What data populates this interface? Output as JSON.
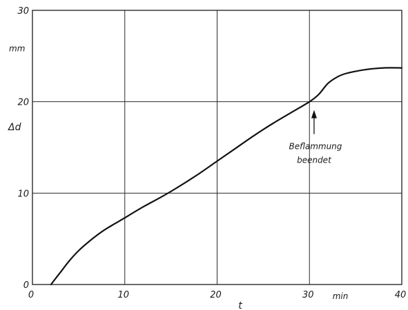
{
  "chart_data": {
    "type": "line",
    "title": "",
    "xlabel": "t",
    "xunit": "min",
    "ylabel": "Δd",
    "yunit": "mm",
    "xlim": [
      0,
      40
    ],
    "ylim": [
      0,
      30
    ],
    "x_ticks": [
      0,
      10,
      20,
      30,
      40
    ],
    "y_ticks": [
      0,
      10,
      20,
      30
    ],
    "grid": true,
    "series": [
      {
        "x": [
          2,
          3,
          4,
          5,
          6,
          7,
          8,
          9,
          10,
          12,
          14,
          16,
          18,
          20,
          22,
          24,
          26,
          28,
          30,
          31,
          32,
          33,
          34,
          36,
          38,
          40
        ],
        "y": [
          0,
          1.3,
          2.6,
          3.7,
          4.6,
          5.4,
          6.1,
          6.7,
          7.3,
          8.5,
          9.6,
          10.8,
          12.1,
          13.5,
          14.9,
          16.3,
          17.6,
          18.8,
          20.0,
          20.8,
          22.0,
          22.7,
          23.1,
          23.5,
          23.7,
          23.7
        ]
      }
    ],
    "annotations": [
      {
        "line1": "Beflammung",
        "line2": "beendet",
        "x": 30.5,
        "y": 20
      }
    ]
  }
}
